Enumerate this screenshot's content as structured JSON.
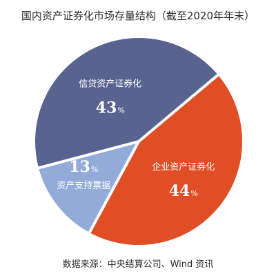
{
  "title": "国内资产证券化市场存量结构（截至2020年年末）",
  "source": "数据来源：中央结算公司、Wind 资讯",
  "colors": {
    "credit": "#58638f",
    "enterprise": "#e04e25",
    "abn": "#92abd9",
    "separator": "#ffffff"
  },
  "chart_data": {
    "type": "pie",
    "title": "国内资产证券化市场存量结构（截至2020年年末）",
    "unit": "%",
    "slices": [
      {
        "name": "企业资产证券化",
        "value": 44
      },
      {
        "name": "资产支持票据",
        "value": 13
      },
      {
        "name": "信贷资产证券化",
        "value": 43
      }
    ]
  }
}
